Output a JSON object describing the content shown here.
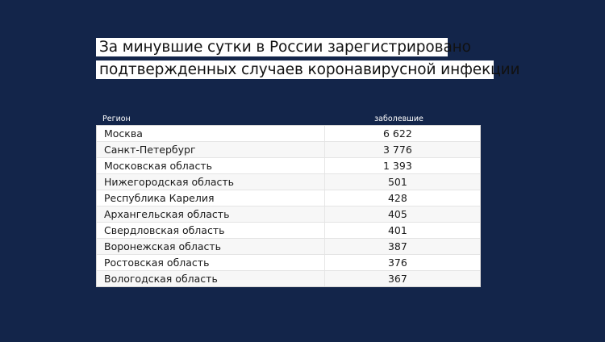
{
  "headline": {
    "line1": "За минувшие сутки в России зарегистрировано",
    "line2": "подтвержденных случаев коронавирусной инфекции"
  },
  "table": {
    "columns": [
      "Регион",
      "заболевшие"
    ],
    "rows": [
      {
        "region": "Москва",
        "cases": "6 622"
      },
      {
        "region": "Санкт-Петербург",
        "cases": "3 776"
      },
      {
        "region": "Московская область",
        "cases": "1 393"
      },
      {
        "region": "Нижегородская область",
        "cases": "501"
      },
      {
        "region": "Республика Карелия",
        "cases": "428"
      },
      {
        "region": "Архангельская область",
        "cases": "405"
      },
      {
        "region": "Свердловская область",
        "cases": "401"
      },
      {
        "region": "Воронежская область",
        "cases": "387"
      },
      {
        "region": "Ростовская область",
        "cases": "376"
      },
      {
        "region": "Вологодская область",
        "cases": "367"
      }
    ]
  },
  "colors": {
    "background": "#13254a",
    "table_bg": "#ffffff",
    "alt_row": "#f7f7f7"
  }
}
